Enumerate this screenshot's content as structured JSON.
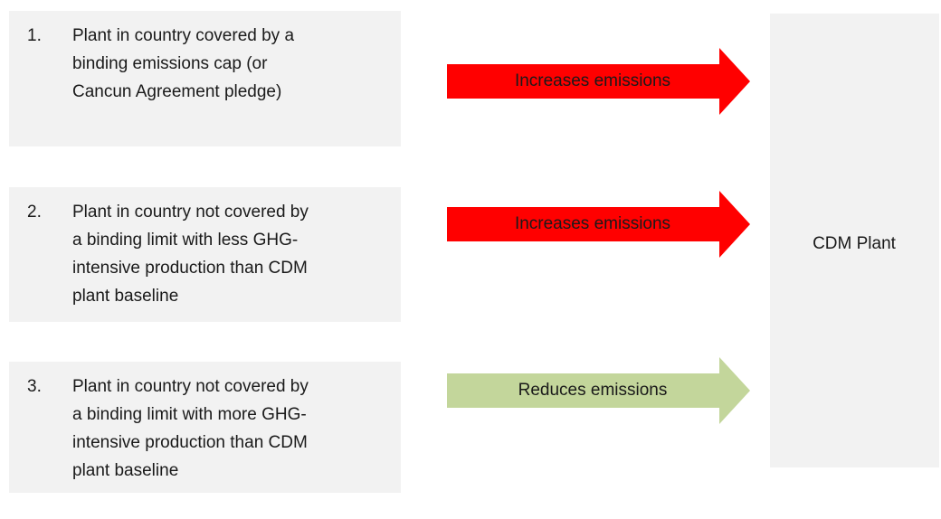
{
  "items": [
    {
      "number": "1.",
      "lines": [
        "Plant in country covered by a",
        "binding emissions cap (or",
        "Cancun Agreement pledge)"
      ],
      "arrow": "Increases emissions",
      "arrow_color": "#ff0000"
    },
    {
      "number": "2.",
      "lines": [
        "Plant in country not covered by",
        "a binding limit with less GHG-",
        "intensive production than CDM",
        "plant baseline"
      ],
      "arrow": "Increases emissions",
      "arrow_color": "#ff0000"
    },
    {
      "number": "3.",
      "lines": [
        "Plant in country not covered by",
        "a binding limit with more GHG-",
        "intensive production than CDM",
        "plant baseline"
      ],
      "arrow": "Reduces emissions",
      "arrow_color": "#c3d69b"
    }
  ],
  "target": "CDM Plant"
}
